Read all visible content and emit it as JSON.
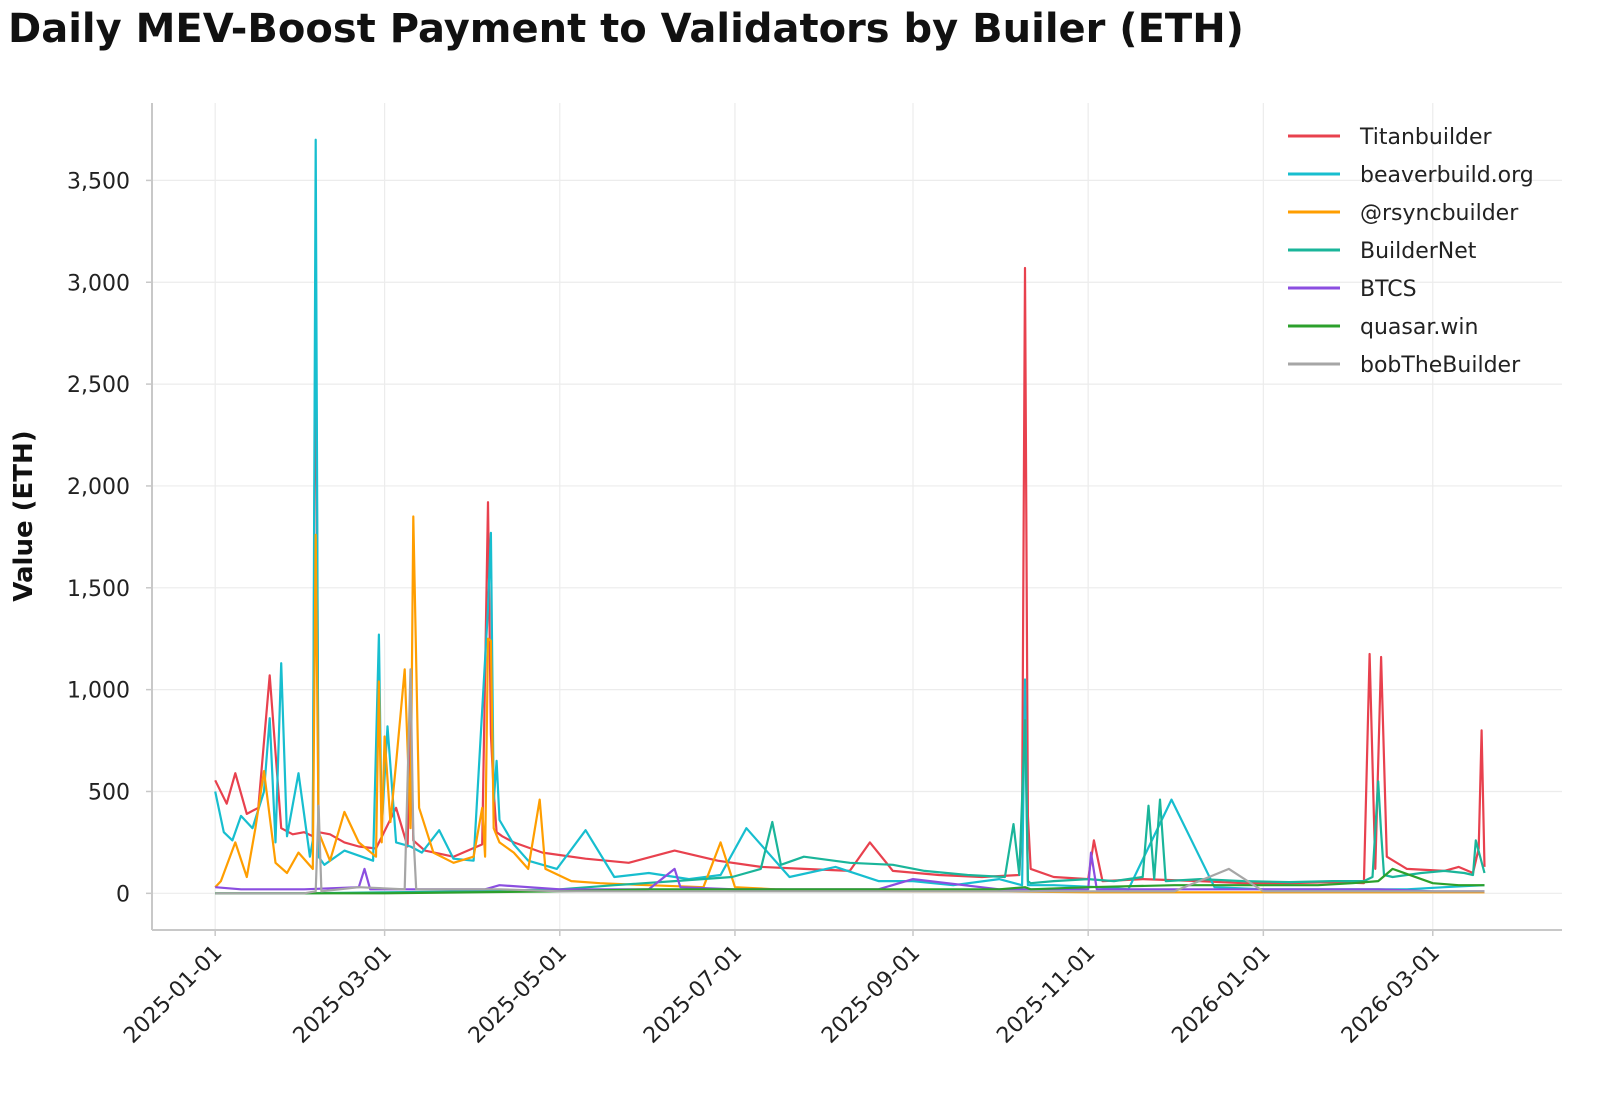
{
  "chart_data": {
    "type": "line",
    "title": "Daily MEV-Boost Payment to Validators by Builer (ETH)",
    "xlabel": "",
    "ylabel": "Value (ETH)",
    "ylim": [
      -180,
      3880
    ],
    "xlim": [
      "2024-12-10",
      "2026-04-15"
    ],
    "grid": true,
    "legend_position": "top-right",
    "y_ticks": [
      0,
      500,
      1000,
      1500,
      2000,
      2500,
      3000,
      3500
    ],
    "y_tick_labels": [
      "0",
      "500",
      "1,000",
      "1,500",
      "2,000",
      "2,500",
      "3,000",
      "3,500"
    ],
    "x_ticks": [
      "2025-01-01",
      "2025-03-01",
      "2025-05-01",
      "2025-07-01",
      "2025-09-01",
      "2025-11-01",
      "2026-01-01",
      "2026-03-01"
    ],
    "series": [
      {
        "name": "Titanbuilder",
        "color": "#e8414e",
        "x": [
          "2025-01-01",
          "2025-01-05",
          "2025-01-08",
          "2025-01-12",
          "2025-01-16",
          "2025-01-20",
          "2025-01-24",
          "2025-01-28",
          "2025-02-01",
          "2025-02-04",
          "2025-02-05",
          "2025-02-06",
          "2025-02-10",
          "2025-02-15",
          "2025-02-20",
          "2025-02-26",
          "2025-03-05",
          "2025-03-09",
          "2025-03-10",
          "2025-03-11",
          "2025-03-15",
          "2025-03-25",
          "2025-04-04",
          "2025-04-06",
          "2025-04-07",
          "2025-04-08",
          "2025-04-09",
          "2025-04-11",
          "2025-04-15",
          "2025-04-25",
          "2025-05-10",
          "2025-05-25",
          "2025-06-10",
          "2025-06-25",
          "2025-07-10",
          "2025-07-25",
          "2025-08-10",
          "2025-08-17",
          "2025-08-25",
          "2025-09-10",
          "2025-09-25",
          "2025-10-08",
          "2025-10-09",
          "2025-10-10",
          "2025-10-11",
          "2025-10-12",
          "2025-10-20",
          "2025-11-01",
          "2025-11-03",
          "2025-11-06",
          "2025-11-20",
          "2025-12-10",
          "2025-12-25",
          "2026-01-10",
          "2026-01-25",
          "2026-02-05",
          "2026-02-07",
          "2026-02-09",
          "2026-02-11",
          "2026-02-13",
          "2026-02-20",
          "2026-03-05",
          "2026-03-10",
          "2026-03-15",
          "2026-03-17",
          "2026-03-18",
          "2026-03-19"
        ],
        "values": [
          555,
          440,
          590,
          390,
          420,
          1070,
          320,
          290,
          300,
          280,
          3100,
          300,
          290,
          250,
          230,
          220,
          420,
          230,
          880,
          260,
          210,
          180,
          240,
          1920,
          780,
          500,
          300,
          280,
          250,
          200,
          170,
          150,
          210,
          160,
          130,
          120,
          110,
          250,
          110,
          90,
          80,
          90,
          380,
          3070,
          380,
          120,
          80,
          70,
          260,
          60,
          70,
          60,
          50,
          50,
          55,
          50,
          1175,
          120,
          1160,
          180,
          120,
          110,
          130,
          100,
          220,
          800,
          130
        ]
      },
      {
        "name": "beaverbuild.org",
        "color": "#17becf",
        "x": [
          "2025-01-01",
          "2025-01-04",
          "2025-01-07",
          "2025-01-10",
          "2025-01-14",
          "2025-01-18",
          "2025-01-20",
          "2025-01-22",
          "2025-01-24",
          "2025-01-26",
          "2025-01-30",
          "2025-02-03",
          "2025-02-04",
          "2025-02-05",
          "2025-02-06",
          "2025-02-08",
          "2025-02-15",
          "2025-02-25",
          "2025-02-27",
          "2025-02-28",
          "2025-03-02",
          "2025-03-05",
          "2025-03-10",
          "2025-03-14",
          "2025-03-20",
          "2025-03-25",
          "2025-04-01",
          "2025-04-06",
          "2025-04-07",
          "2025-04-08",
          "2025-04-09",
          "2025-04-10",
          "2025-04-15",
          "2025-04-20",
          "2025-04-30",
          "2025-05-10",
          "2025-05-20",
          "2025-06-01",
          "2025-06-15",
          "2025-06-26",
          "2025-07-05",
          "2025-07-20",
          "2025-08-05",
          "2025-08-20",
          "2025-09-01",
          "2025-09-15",
          "2025-10-01",
          "2025-10-09",
          "2025-10-10",
          "2025-10-11",
          "2025-10-20",
          "2025-11-05",
          "2025-11-15",
          "2025-11-30",
          "2025-12-15",
          "2026-01-01",
          "2026-01-20",
          "2026-02-05",
          "2026-02-20",
          "2026-03-05",
          "2026-03-19"
        ],
        "values": [
          500,
          300,
          260,
          380,
          320,
          500,
          860,
          250,
          1130,
          280,
          590,
          180,
          260,
          3700,
          180,
          140,
          210,
          160,
          1270,
          320,
          820,
          250,
          230,
          200,
          310,
          170,
          160,
          1400,
          1770,
          450,
          650,
          360,
          240,
          160,
          120,
          310,
          80,
          100,
          70,
          90,
          320,
          80,
          130,
          60,
          60,
          40,
          70,
          40,
          1050,
          40,
          40,
          30,
          20,
          460,
          30,
          20,
          20,
          20,
          20,
          30,
          40
        ]
      },
      {
        "name": "@rsyncbuilder",
        "color": "#ff9e00",
        "x": [
          "2025-01-01",
          "2025-01-03",
          "2025-01-08",
          "2025-01-12",
          "2025-01-15",
          "2025-01-18",
          "2025-01-22",
          "2025-01-26",
          "2025-01-30",
          "2025-02-04",
          "2025-02-05",
          "2025-02-06",
          "2025-02-10",
          "2025-02-15",
          "2025-02-20",
          "2025-02-26",
          "2025-02-27",
          "2025-02-28",
          "2025-03-01",
          "2025-03-03",
          "2025-03-05",
          "2025-03-08",
          "2025-03-10",
          "2025-03-11",
          "2025-03-13",
          "2025-03-18",
          "2025-03-25",
          "2025-04-01",
          "2025-04-04",
          "2025-04-05",
          "2025-04-06",
          "2025-04-07",
          "2025-04-08",
          "2025-04-10",
          "2025-04-15",
          "2025-04-20",
          "2025-04-24",
          "2025-04-26",
          "2025-05-05",
          "2025-05-15",
          "2025-06-01",
          "2025-06-20",
          "2025-06-26",
          "2025-07-01",
          "2025-07-15",
          "2025-08-01",
          "2025-09-01",
          "2025-10-01",
          "2025-11-01",
          "2025-12-01",
          "2026-01-01",
          "2026-02-01",
          "2026-03-01",
          "2026-03-19"
        ],
        "values": [
          30,
          60,
          250,
          80,
          320,
          600,
          150,
          100,
          200,
          120,
          1760,
          300,
          160,
          400,
          250,
          180,
          1040,
          250,
          770,
          350,
          640,
          1100,
          320,
          1850,
          420,
          200,
          150,
          180,
          420,
          180,
          1250,
          1240,
          320,
          250,
          200,
          120,
          460,
          120,
          60,
          50,
          40,
          30,
          250,
          30,
          20,
          15,
          10,
          10,
          5,
          5,
          5,
          5,
          5,
          5
        ]
      },
      {
        "name": "BuilderNet",
        "color": "#1ab59a",
        "x": [
          "2025-01-01",
          "2025-02-01",
          "2025-03-01",
          "2025-04-01",
          "2025-05-01",
          "2025-05-20",
          "2025-06-10",
          "2025-06-30",
          "2025-07-10",
          "2025-07-14",
          "2025-07-17",
          "2025-07-25",
          "2025-08-10",
          "2025-08-25",
          "2025-09-05",
          "2025-09-20",
          "2025-10-03",
          "2025-10-06",
          "2025-10-08",
          "2025-10-10",
          "2025-10-11",
          "2025-10-12",
          "2025-10-20",
          "2025-11-01",
          "2025-11-10",
          "2025-11-20",
          "2025-11-22",
          "2025-11-24",
          "2025-11-26",
          "2025-11-28",
          "2025-12-10",
          "2025-12-25",
          "2026-01-10",
          "2026-01-25",
          "2026-02-05",
          "2026-02-08",
          "2026-02-10",
          "2026-02-11",
          "2026-02-12",
          "2026-02-15",
          "2026-02-25",
          "2026-03-05",
          "2026-03-12",
          "2026-03-15",
          "2026-03-16",
          "2026-03-19"
        ],
        "values": [
          0,
          0,
          5,
          10,
          20,
          40,
          60,
          80,
          120,
          350,
          140,
          180,
          150,
          140,
          110,
          90,
          80,
          340,
          90,
          850,
          60,
          50,
          60,
          70,
          60,
          80,
          430,
          70,
          460,
          60,
          70,
          60,
          55,
          60,
          60,
          80,
          550,
          300,
          90,
          80,
          100,
          110,
          100,
          90,
          260,
          100
        ]
      },
      {
        "name": "BTCS",
        "color": "#8b4ee0",
        "x": [
          "2025-01-01",
          "2025-01-10",
          "2025-01-20",
          "2025-02-01",
          "2025-02-20",
          "2025-02-22",
          "2025-02-24",
          "2025-03-05",
          "2025-03-20",
          "2025-04-05",
          "2025-04-10",
          "2025-05-01",
          "2025-06-01",
          "2025-06-10",
          "2025-06-12",
          "2025-07-01",
          "2025-08-01",
          "2025-08-20",
          "2025-09-01",
          "2025-10-01",
          "2025-11-01",
          "2025-11-02",
          "2025-11-04",
          "2025-11-20",
          "2025-12-10",
          "2026-01-10",
          "2026-02-10",
          "2026-03-01",
          "2026-03-19"
        ],
        "values": [
          30,
          20,
          20,
          20,
          30,
          120,
          20,
          20,
          20,
          20,
          40,
          20,
          20,
          120,
          30,
          20,
          20,
          20,
          70,
          20,
          20,
          200,
          20,
          20,
          20,
          20,
          20,
          10,
          10
        ]
      },
      {
        "name": "quasar.win",
        "color": "#2ca02c",
        "x": [
          "2025-01-01",
          "2025-03-01",
          "2025-05-01",
          "2025-06-01",
          "2025-07-01",
          "2025-08-01",
          "2025-09-01",
          "2025-10-01",
          "2025-10-10",
          "2025-10-12",
          "2025-11-01",
          "2025-12-01",
          "2026-01-01",
          "2026-01-20",
          "2026-02-01",
          "2026-02-10",
          "2026-02-15",
          "2026-03-01",
          "2026-03-10",
          "2026-03-19"
        ],
        "values": [
          0,
          0,
          10,
          20,
          20,
          20,
          20,
          20,
          30,
          20,
          30,
          40,
          40,
          40,
          50,
          60,
          120,
          50,
          40,
          40
        ]
      },
      {
        "name": "bobTheBuilder",
        "color": "#a6a6a6",
        "x": [
          "2025-01-01",
          "2025-01-20",
          "2025-02-01",
          "2025-02-05",
          "2025-02-06",
          "2025-02-07",
          "2025-02-20",
          "2025-03-08",
          "2025-03-10",
          "2025-03-11",
          "2025-03-12",
          "2025-03-25",
          "2025-04-10",
          "2025-05-01",
          "2025-06-01",
          "2025-07-01",
          "2025-08-01",
          "2025-09-01",
          "2025-10-01",
          "2025-11-01",
          "2025-12-01",
          "2025-12-20",
          "2026-01-01",
          "2026-02-01",
          "2026-03-01",
          "2026-03-19"
        ],
        "values": [
          0,
          0,
          0,
          10,
          430,
          10,
          30,
          20,
          1100,
          300,
          20,
          20,
          20,
          10,
          10,
          10,
          10,
          10,
          10,
          10,
          10,
          120,
          10,
          10,
          10,
          10
        ]
      }
    ]
  }
}
